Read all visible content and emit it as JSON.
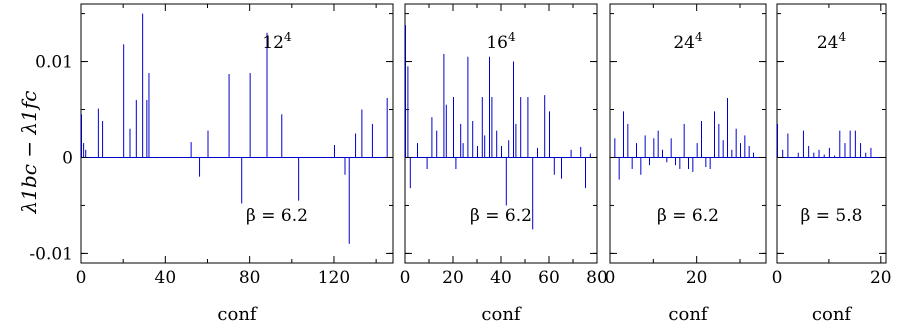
{
  "chart_data": [
    {
      "type": "bar",
      "annotation_top": "12^4",
      "annotation_bottom": "β = 6.2",
      "xlabel": "conf",
      "ylabel": "λ1bc − λ1fc",
      "xlim": [
        0,
        148
      ],
      "ylim": [
        -0.011,
        0.016
      ],
      "xticks": [
        0,
        40,
        80,
        120
      ],
      "xtick_labels": [
        "0",
        "40",
        "80",
        "120"
      ],
      "yticks": [
        -0.01,
        0,
        0.01
      ],
      "ytick_labels": [
        "-0.01",
        "0",
        "0.01"
      ],
      "x": [
        0,
        1,
        2,
        8,
        10,
        20,
        23,
        26,
        29,
        31,
        32,
        52,
        56,
        60,
        70,
        76,
        80,
        88,
        95,
        103,
        120,
        125,
        127,
        130,
        133,
        138,
        145
      ],
      "values": [
        0.0045,
        0.0015,
        0.0008,
        0.0051,
        0.0038,
        0.0118,
        0.003,
        0.006,
        0.015,
        0.006,
        0.0088,
        0.0016,
        -0.002,
        0.0028,
        0.0087,
        -0.0048,
        0.0088,
        0.013,
        0.0045,
        -0.0045,
        0.0013,
        -0.0018,
        -0.009,
        0.0025,
        0.005,
        0.0035,
        0.0062
      ],
      "color": "#0000cc"
    },
    {
      "type": "bar",
      "annotation_top": "16^4",
      "annotation_bottom": "β = 6.2",
      "xlabel": "conf",
      "xlim": [
        0,
        80
      ],
      "ylim": [
        -0.011,
        0.016
      ],
      "xticks": [
        0,
        20,
        40,
        60,
        80
      ],
      "xtick_labels": [
        "0",
        "20",
        "40",
        "60",
        "80"
      ],
      "x": [
        0,
        1,
        2,
        5,
        9,
        11,
        13,
        16,
        17,
        20,
        21,
        23,
        24,
        26,
        28,
        30,
        32,
        33,
        35,
        36,
        38,
        40,
        42,
        43,
        45,
        46,
        48,
        51,
        53,
        55,
        58,
        60,
        62,
        65,
        69,
        73,
        75,
        77
      ],
      "values": [
        0.0138,
        0.0095,
        -0.0032,
        0.0015,
        -0.0012,
        0.0042,
        0.0028,
        0.0108,
        0.0055,
        0.0063,
        -0.0012,
        0.0035,
        0.0015,
        0.0105,
        0.0038,
        0.0012,
        0.0063,
        0.0023,
        0.0105,
        0.0063,
        0.0028,
        0.0012,
        -0.005,
        0.0018,
        0.01,
        0.0035,
        0.0063,
        0.0063,
        -0.0075,
        0.001,
        0.0065,
        0.0048,
        -0.0018,
        -0.0022,
        0.0008,
        0.0011,
        -0.0032,
        0.0004
      ],
      "color": "#0000cc"
    },
    {
      "type": "bar",
      "annotation_top": "24^4",
      "annotation_bottom": "β = 6.2",
      "xlabel": "conf",
      "xlim": [
        0,
        36
      ],
      "ylim": [
        -0.011,
        0.016
      ],
      "xticks": [
        0,
        20
      ],
      "xtick_labels": [
        "0",
        "20"
      ],
      "x": [
        1,
        2,
        3,
        4,
        5,
        6,
        7,
        8,
        9,
        10,
        11,
        12,
        13,
        14,
        15,
        16,
        17,
        18,
        19,
        20,
        21,
        22,
        23,
        24,
        25,
        26,
        27,
        28,
        29,
        30,
        31,
        32,
        33
      ],
      "values": [
        0.002,
        -0.0023,
        0.0048,
        0.0035,
        -0.0012,
        0.0015,
        -0.0018,
        0.0023,
        -0.0008,
        0.002,
        0.0028,
        0.0008,
        -0.0005,
        0.002,
        -0.0008,
        -0.0012,
        0.0035,
        -0.0012,
        -0.0015,
        0.0015,
        0.0038,
        -0.001,
        -0.0012,
        0.0048,
        0.0035,
        0.0018,
        0.0062,
        0.0008,
        0.003,
        0.0015,
        0.0023,
        0.0012,
        0.0005
      ],
      "color": "#0000cc"
    },
    {
      "type": "bar",
      "annotation_top": "24^4",
      "annotation_bottom": "β = 5.8",
      "xlabel": "conf",
      "xlim": [
        0,
        21
      ],
      "ylim": [
        -0.011,
        0.016
      ],
      "xticks": [
        0,
        20
      ],
      "xtick_labels": [
        "0",
        "20"
      ],
      "x": [
        0,
        1,
        2,
        4,
        5,
        6,
        7,
        8,
        9,
        10,
        11,
        12,
        13,
        14,
        15,
        16,
        17,
        18
      ],
      "values": [
        0.0035,
        0.0008,
        0.0025,
        0.0005,
        0.0028,
        0.0012,
        0.0005,
        0.0008,
        0.0003,
        0.001,
        0.0002,
        0.0028,
        0.0015,
        0.0028,
        0.0028,
        0.0015,
        0.0005,
        0.001
      ],
      "color": "#0000cc"
    }
  ]
}
